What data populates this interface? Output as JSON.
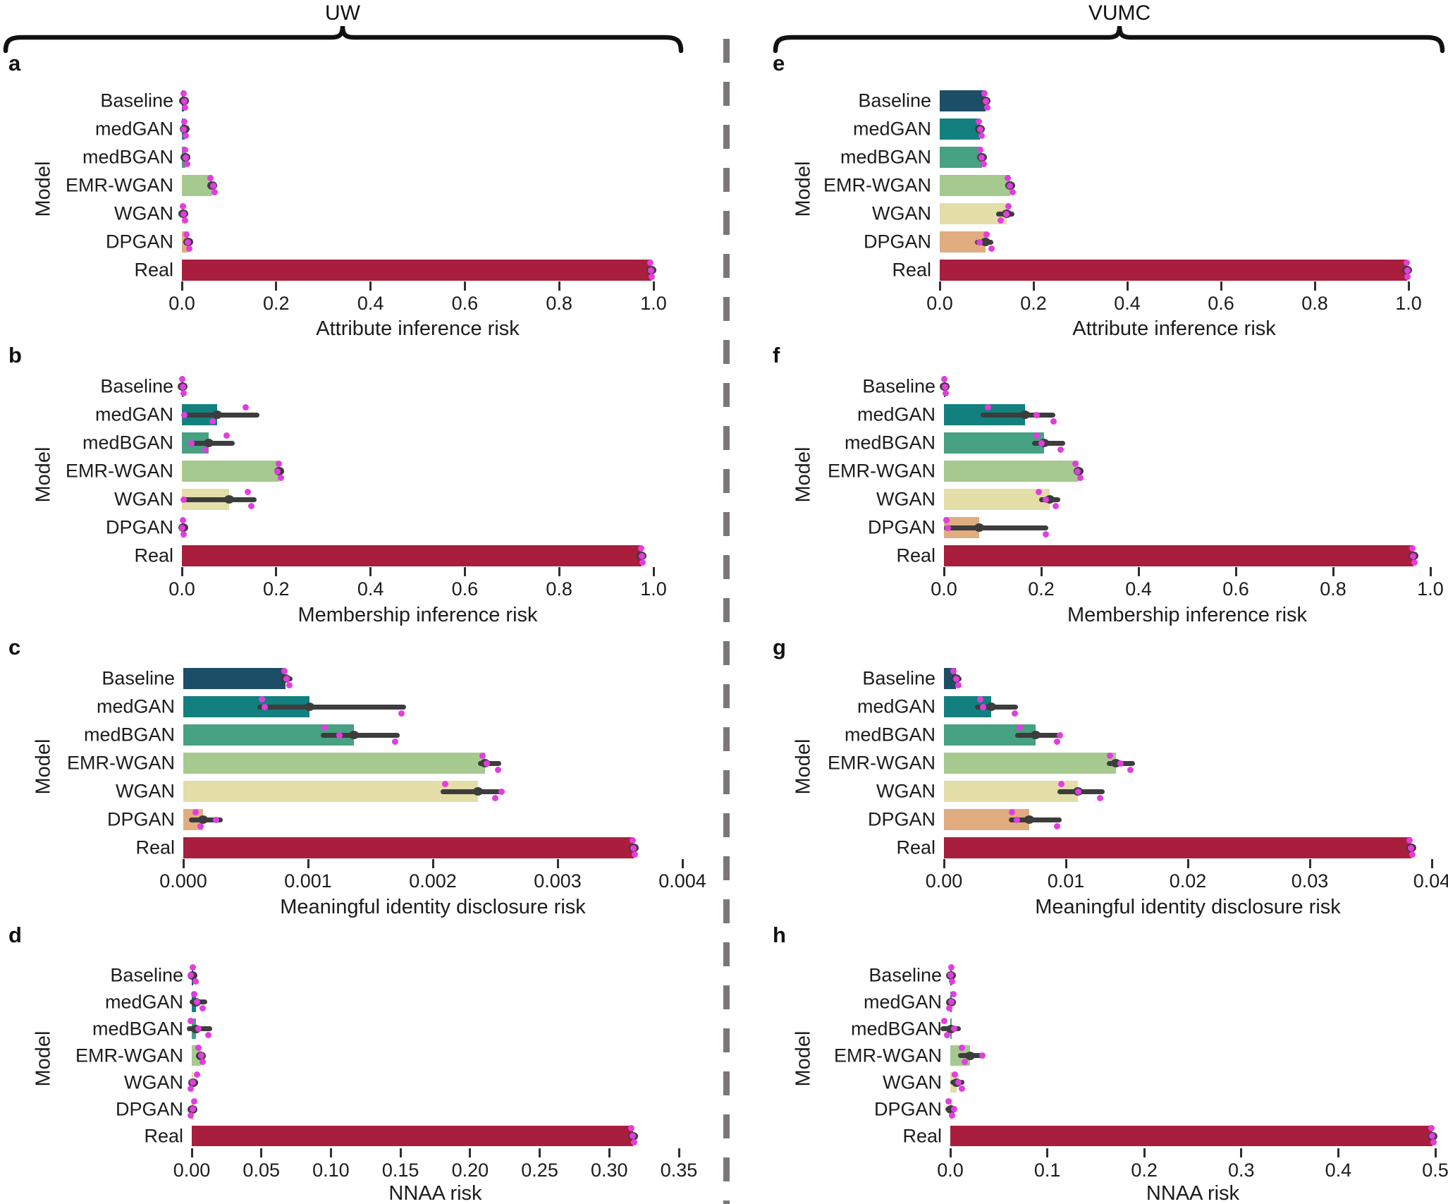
{
  "figure": {
    "left_header": "UW",
    "right_header": "VUMC",
    "ylabel": "Model",
    "models": [
      "Baseline",
      "medGAN",
      "medBGAN",
      "EMR-WGAN",
      "WGAN",
      "DPGAN",
      "Real"
    ],
    "colors": {
      "Baseline": "#1d4e68",
      "medGAN": "#12807f",
      "medBGAN": "#47a183",
      "EMR-WGAN": "#a6c98f",
      "WGAN": "#e3dda7",
      "DPGAN": "#e0ac80",
      "Real": "#a81e3c",
      "error_bar": "#3d3d3d",
      "scatter_point": "#e23ddf",
      "divider": "#7b7777",
      "brace": "#111111"
    }
  },
  "chart_data": [
    {
      "type": "bar",
      "letter": "a",
      "site": "UW",
      "title": "",
      "xlabel": "Attribute inference risk",
      "ylabel": "Model",
      "orientation": "horizontal",
      "grid": false,
      "legend": "none",
      "xlim": [
        0,
        1.0
      ],
      "xtick_labels": [
        "0.0",
        "0.2",
        "0.4",
        "0.6",
        "0.8",
        "1.0"
      ],
      "xtick_values": [
        0,
        0.2,
        0.4,
        0.6,
        0.8,
        1.0
      ],
      "categories": [
        "Baseline",
        "medGAN",
        "medBGAN",
        "EMR-WGAN",
        "WGAN",
        "DPGAN",
        "Real"
      ],
      "values": [
        0.005,
        0.006,
        0.008,
        0.065,
        0.003,
        0.013,
        0.995
      ],
      "errors": [
        [
          0.003,
          0.008
        ],
        [
          0.004,
          0.009
        ],
        [
          0.005,
          0.012
        ],
        [
          0.06,
          0.071
        ],
        [
          0.002,
          0.006
        ],
        [
          0.008,
          0.016
        ],
        [
          0.992,
          0.997
        ]
      ],
      "points": [
        [
          0.004,
          0.006,
          0.005
        ],
        [
          0.005,
          0.008,
          0.004
        ],
        [
          0.006,
          0.011,
          0.008
        ],
        [
          0.061,
          0.07,
          0.066
        ],
        [
          0.002,
          0.006,
          0.003
        ],
        [
          0.009,
          0.015,
          0.012
        ],
        [
          0.994,
          0.996,
          0.995
        ]
      ]
    },
    {
      "type": "bar",
      "letter": "b",
      "site": "UW",
      "title": "",
      "xlabel": "Membership inference risk",
      "ylabel": "Model",
      "orientation": "horizontal",
      "grid": false,
      "legend": "none",
      "xlim": [
        0,
        1.0
      ],
      "xtick_labels": [
        "0.0",
        "0.2",
        "0.4",
        "0.6",
        "0.8",
        "1.0"
      ],
      "xtick_values": [
        0,
        0.2,
        0.4,
        0.6,
        0.8,
        1.0
      ],
      "categories": [
        "Baseline",
        "medGAN",
        "medBGAN",
        "EMR-WGAN",
        "WGAN",
        "DPGAN",
        "Real"
      ],
      "values": [
        0.002,
        0.075,
        0.057,
        0.207,
        0.1,
        0.003,
        0.975
      ],
      "errors": [
        [
          0.001,
          0.004
        ],
        [
          0.004,
          0.16
        ],
        [
          0.018,
          0.107
        ],
        [
          0.2,
          0.212
        ],
        [
          0.003,
          0.154
        ],
        [
          0.001,
          0.005
        ],
        [
          0.971,
          0.978
        ]
      ],
      "points": [
        [
          0.001,
          0.003,
          0.002
        ],
        [
          0.135,
          0.065,
          0.005
        ],
        [
          0.095,
          0.05,
          0.02
        ],
        [
          0.205,
          0.21,
          0.203
        ],
        [
          0.14,
          0.147,
          0.004
        ],
        [
          0.002,
          0.004,
          0.001
        ],
        [
          0.974,
          0.977,
          0.975
        ]
      ]
    },
    {
      "type": "bar",
      "letter": "c",
      "site": "UW",
      "title": "",
      "xlabel": "Meaningful identity disclosure risk",
      "ylabel": "Model",
      "orientation": "horizontal",
      "grid": false,
      "legend": "none",
      "xlim": [
        0,
        0.004
      ],
      "xtick_labels": [
        "0.000",
        "0.001",
        "0.002",
        "0.003",
        "0.004"
      ],
      "xtick_values": [
        0,
        0.001,
        0.002,
        0.003,
        0.004
      ],
      "categories": [
        "Baseline",
        "medGAN",
        "medBGAN",
        "EMR-WGAN",
        "WGAN",
        "DPGAN",
        "Real"
      ],
      "values": [
        0.00082,
        0.00101,
        0.00137,
        0.00242,
        0.00236,
        0.00016,
        0.00361
      ],
      "errors": [
        [
          0.0008,
          0.00086
        ],
        [
          0.00061,
          0.00177
        ],
        [
          0.00112,
          0.00172
        ],
        [
          0.00238,
          0.00253
        ],
        [
          0.00208,
          0.00256
        ],
        [
          6e-05,
          0.0003
        ],
        [
          0.00359,
          0.00363
        ]
      ],
      "points": [
        [
          0.00081,
          0.00085,
          0.00083
        ],
        [
          0.00063,
          0.00175,
          0.00065
        ],
        [
          0.00113,
          0.0017,
          0.00125
        ],
        [
          0.0024,
          0.00252,
          0.00243
        ],
        [
          0.0021,
          0.0025,
          0.00255
        ],
        [
          0.0001,
          0.00014,
          0.00026
        ],
        [
          0.0036,
          0.00362,
          0.00361
        ]
      ]
    },
    {
      "type": "bar",
      "letter": "d",
      "site": "UW",
      "title": "",
      "xlabel": "NNAA risk",
      "ylabel": "Model",
      "orientation": "horizontal",
      "grid": false,
      "legend": "none",
      "xlim": [
        0,
        0.35
      ],
      "xtick_labels": [
        "0.00",
        "0.05",
        "0.10",
        "0.15",
        "0.20",
        "0.25",
        "0.30",
        "0.35"
      ],
      "xtick_values": [
        0,
        0.05,
        0.1,
        0.15,
        0.2,
        0.25,
        0.3,
        0.35
      ],
      "categories": [
        "Baseline",
        "medGAN",
        "medBGAN",
        "EMR-WGAN",
        "WGAN",
        "DPGAN",
        "Real"
      ],
      "values": [
        0.0005,
        0.003,
        0.003,
        0.0067,
        0.001,
        0.0005,
        0.317
      ],
      "errors": [
        [
          0.0,
          0.001
        ],
        [
          0.0,
          0.0098
        ],
        [
          -0.002,
          0.013
        ],
        [
          0.005,
          0.008
        ],
        [
          0.0,
          0.003
        ],
        [
          0.0,
          0.001
        ],
        [
          0.315,
          0.319
        ]
      ],
      "points": [
        [
          0.001,
          0.003,
          -0.001
        ],
        [
          0.002,
          0.008,
          0.004
        ],
        [
          -0.001,
          0.012,
          0.005
        ],
        [
          0.005,
          0.008,
          0.007
        ],
        [
          0.004,
          -0.001,
          0.001
        ],
        [
          0.002,
          -0.001,
          0.001
        ],
        [
          0.316,
          0.318,
          0.317
        ]
      ]
    },
    {
      "type": "bar",
      "letter": "e",
      "site": "VUMC",
      "title": "",
      "xlabel": "Attribute inference risk",
      "ylabel": "Model",
      "orientation": "horizontal",
      "grid": false,
      "legend": "none",
      "xlim": [
        0,
        1.0
      ],
      "xtick_labels": [
        "0.0",
        "0.2",
        "0.4",
        "0.6",
        "0.8",
        "1.0"
      ],
      "xtick_values": [
        0,
        0.2,
        0.4,
        0.6,
        0.8,
        1.0
      ],
      "categories": [
        "Baseline",
        "medGAN",
        "medBGAN",
        "EMR-WGAN",
        "WGAN",
        "DPGAN",
        "Real"
      ],
      "values": [
        0.098,
        0.086,
        0.09,
        0.15,
        0.143,
        0.097,
        0.997
      ],
      "errors": [
        [
          0.095,
          0.101
        ],
        [
          0.082,
          0.09
        ],
        [
          0.085,
          0.095
        ],
        [
          0.147,
          0.154
        ],
        [
          0.125,
          0.155
        ],
        [
          0.08,
          0.11
        ],
        [
          0.995,
          0.999
        ]
      ],
      "points": [
        [
          0.095,
          0.101,
          0.098
        ],
        [
          0.083,
          0.09,
          0.086
        ],
        [
          0.086,
          0.094,
          0.09
        ],
        [
          0.145,
          0.155,
          0.149
        ],
        [
          0.147,
          0.13,
          0.142
        ],
        [
          0.1,
          0.11,
          0.085
        ],
        [
          0.996,
          0.998,
          0.997
        ]
      ]
    },
    {
      "type": "bar",
      "letter": "f",
      "site": "VUMC",
      "title": "",
      "xlabel": "Membership inference risk",
      "ylabel": "Model",
      "orientation": "horizontal",
      "grid": false,
      "legend": "none",
      "xlim": [
        0,
        1.0
      ],
      "xtick_labels": [
        "0.0",
        "0.2",
        "0.4",
        "0.6",
        "0.8",
        "1.0"
      ],
      "xtick_values": [
        0,
        0.2,
        0.4,
        0.6,
        0.8,
        1.0
      ],
      "categories": [
        "Baseline",
        "medGAN",
        "medBGAN",
        "EMR-WGAN",
        "WGAN",
        "DPGAN",
        "Real"
      ],
      "values": [
        0.002,
        0.167,
        0.206,
        0.277,
        0.217,
        0.072,
        0.965
      ],
      "errors": [
        [
          0.001,
          0.004
        ],
        [
          0.08,
          0.225
        ],
        [
          0.185,
          0.245
        ],
        [
          0.272,
          0.281
        ],
        [
          0.2,
          0.235
        ],
        [
          0.004,
          0.21
        ],
        [
          0.962,
          0.968
        ]
      ],
      "points": [
        [
          0.001,
          0.003,
          0.002
        ],
        [
          0.09,
          0.225,
          0.19
        ],
        [
          0.19,
          0.24,
          0.2
        ],
        [
          0.27,
          0.28,
          0.275
        ],
        [
          0.195,
          0.23,
          0.21
        ],
        [
          0.005,
          0.21,
          0.008
        ],
        [
          0.963,
          0.967,
          0.965
        ]
      ]
    },
    {
      "type": "bar",
      "letter": "g",
      "site": "VUMC",
      "title": "",
      "xlabel": "Meaningful identity disclosure risk",
      "ylabel": "Model",
      "orientation": "horizontal",
      "grid": false,
      "legend": "none",
      "xlim": [
        0,
        0.04
      ],
      "xtick_labels": [
        "0.00",
        "0.01",
        "0.02",
        "0.03",
        "0.04"
      ],
      "xtick_values": [
        0,
        0.01,
        0.02,
        0.03,
        0.04
      ],
      "categories": [
        "Baseline",
        "medGAN",
        "medBGAN",
        "EMR-WGAN",
        "WGAN",
        "DPGAN",
        "Real"
      ],
      "values": [
        0.001,
        0.0039,
        0.0075,
        0.0141,
        0.011,
        0.007,
        0.0383
      ],
      "errors": [
        [
          0.0008,
          0.0013
        ],
        [
          0.0027,
          0.0059
        ],
        [
          0.006,
          0.0095
        ],
        [
          0.0135,
          0.0155
        ],
        [
          0.0095,
          0.013
        ],
        [
          0.0055,
          0.0095
        ],
        [
          0.0381,
          0.0385
        ]
      ],
      "points": [
        [
          0.0008,
          0.0012,
          0.001
        ],
        [
          0.003,
          0.0058,
          0.0032
        ],
        [
          0.0062,
          0.0093,
          0.0095
        ],
        [
          0.0136,
          0.0153,
          0.0145
        ],
        [
          0.0096,
          0.0128,
          0.011
        ],
        [
          0.0056,
          0.0093,
          0.006
        ],
        [
          0.0382,
          0.0384,
          0.0383
        ]
      ]
    },
    {
      "type": "bar",
      "letter": "h",
      "site": "VUMC",
      "title": "",
      "xlabel": "NNAA risk",
      "ylabel": "Model",
      "orientation": "horizontal",
      "grid": false,
      "legend": "none",
      "xlim": [
        0,
        0.5
      ],
      "xtick_labels": [
        "0.0",
        "0.1",
        "0.2",
        "0.3",
        "0.4",
        "0.5"
      ],
      "xtick_values": [
        0,
        0.1,
        0.2,
        0.3,
        0.4,
        0.5
      ],
      "categories": [
        "Baseline",
        "medGAN",
        "medBGAN",
        "EMR-WGAN",
        "WGAN",
        "DPGAN",
        "Real"
      ],
      "values": [
        0.001,
        0.001,
        0.0005,
        0.02,
        0.0065,
        0.001,
        0.497
      ],
      "errors": [
        [
          0.0,
          0.002
        ],
        [
          -0.001,
          0.004
        ],
        [
          -0.008,
          0.009
        ],
        [
          0.01,
          0.031
        ],
        [
          0.002,
          0.012
        ],
        [
          -0.003,
          0.004
        ],
        [
          0.495,
          0.499
        ]
      ],
      "points": [
        [
          0.001,
          0.002,
          0.0
        ],
        [
          0.003,
          -0.001,
          0.001
        ],
        [
          -0.006,
          -0.003,
          0.004
        ],
        [
          0.012,
          0.015,
          0.033
        ],
        [
          0.005,
          0.012,
          0.008
        ],
        [
          -0.002,
          0.002,
          0.004
        ],
        [
          0.496,
          0.498,
          0.497
        ]
      ]
    }
  ]
}
